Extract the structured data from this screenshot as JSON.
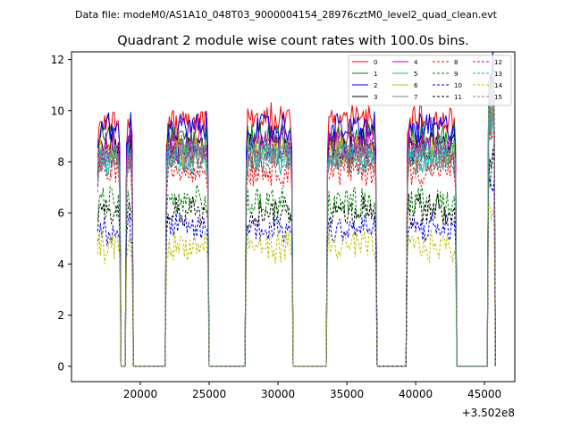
{
  "chart_data": {
    "type": "line",
    "suptitle": "Data file: modeM0/AS1A10_048T03_9000004154_28976cztM0_level2_quad_clean.evt",
    "title": "Quadrant 2 module wise count rates with 100.0s bins.",
    "xlabel": "",
    "ylabel": "",
    "x_offset_label": "+3.502e8",
    "xlim": [
      15000,
      47200
    ],
    "ylim": [
      -0.6,
      12.3
    ],
    "x_ticks": [
      20000,
      25000,
      30000,
      35000,
      40000,
      45000
    ],
    "x_tick_labels": [
      "20000",
      "25000",
      "30000",
      "35000",
      "40000",
      "45000"
    ],
    "y_ticks": [
      0,
      2,
      4,
      6,
      8,
      10,
      12
    ],
    "y_tick_labels": [
      "0",
      "2",
      "4",
      "6",
      "8",
      "10",
      "12"
    ],
    "grid": false,
    "legend_position": "top-right",
    "bin_seconds": 100,
    "active_segments": [
      {
        "start": 16900,
        "end": 18500
      },
      {
        "start": 19000,
        "end": 19400
      },
      {
        "start": 21900,
        "end": 24900
      },
      {
        "start": 27700,
        "end": 31000
      },
      {
        "start": 33600,
        "end": 37100
      },
      {
        "start": 39400,
        "end": 42900
      },
      {
        "start": 45300,
        "end": 45700
      }
    ],
    "series": [
      {
        "name": "0",
        "color": "#ff0000",
        "dashed": false,
        "level": 9.6
      },
      {
        "name": "1",
        "color": "#008000",
        "dashed": false,
        "level": 8.9
      },
      {
        "name": "2",
        "color": "#0000ff",
        "dashed": false,
        "level": 9.3
      },
      {
        "name": "3",
        "color": "#000000",
        "dashed": false,
        "level": 8.6
      },
      {
        "name": "4",
        "color": "#bf00bf",
        "dashed": false,
        "level": 8.7
      },
      {
        "name": "5",
        "color": "#00bfbf",
        "dashed": false,
        "level": 8.1
      },
      {
        "name": "6",
        "color": "#bfbf00",
        "dashed": false,
        "level": 8.4
      },
      {
        "name": "7",
        "color": "#808080",
        "dashed": false,
        "level": 8.2
      },
      {
        "name": "8",
        "color": "#ff0000",
        "dashed": true,
        "level": 7.7
      },
      {
        "name": "9",
        "color": "#008000",
        "dashed": true,
        "level": 6.4
      },
      {
        "name": "10",
        "color": "#0000ff",
        "dashed": true,
        "level": 5.4
      },
      {
        "name": "11",
        "color": "#000000",
        "dashed": true,
        "level": 6.1
      },
      {
        "name": "12",
        "color": "#bf00bf",
        "dashed": true,
        "level": 8.5
      },
      {
        "name": "13",
        "color": "#00bfbf",
        "dashed": true,
        "level": 8.3
      },
      {
        "name": "14",
        "color": "#bfbf00",
        "dashed": true,
        "level": 4.7
      },
      {
        "name": "15",
        "color": "#808080",
        "dashed": true,
        "level": 8.0
      }
    ]
  }
}
